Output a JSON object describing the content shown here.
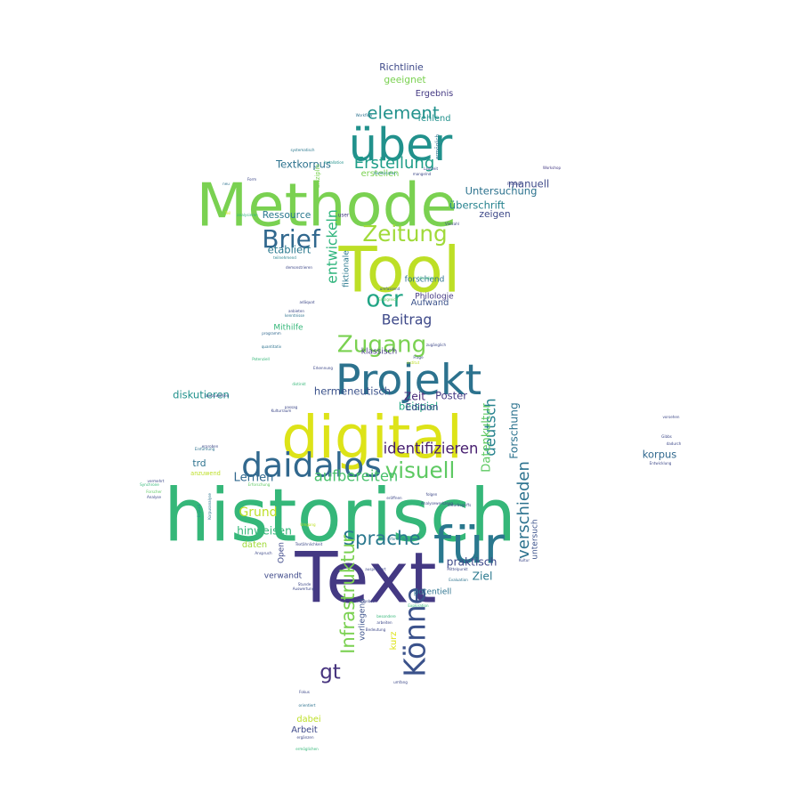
{
  "words": [
    {
      "text": "historisch",
      "size": 1.0,
      "color": "#35b779"
    },
    {
      "text": "Text",
      "size": 0.96,
      "color": "#443983"
    },
    {
      "text": "Tool",
      "size": 0.86,
      "color": "#bddf26"
    },
    {
      "text": "Methode",
      "size": 0.82,
      "color": "#7ad151"
    },
    {
      "text": "digital",
      "size": 0.8,
      "color": "#dde318"
    },
    {
      "text": "für",
      "size": 0.7,
      "color": "#2a788e"
    },
    {
      "text": "über",
      "size": 0.62,
      "color": "#21918c"
    },
    {
      "text": "Projekt",
      "size": 0.58,
      "color": "#2c728e"
    },
    {
      "text": "daidalos",
      "size": 0.46,
      "color": "#31688e"
    },
    {
      "text": "Könne",
      "size": 0.4,
      "color": "#3b528b"
    },
    {
      "text": "Brief",
      "size": 0.34,
      "color": "#31688e"
    },
    {
      "text": "ocr",
      "size": 0.32,
      "color": "#21a585"
    },
    {
      "text": "Zugang",
      "size": 0.32,
      "color": "#7ad151"
    },
    {
      "text": "Zeitung",
      "size": 0.3,
      "color": "#a0da39"
    },
    {
      "text": "visuell",
      "size": 0.3,
      "color": "#5ec962"
    },
    {
      "text": "Sprache",
      "size": 0.26,
      "color": "#2a788e"
    },
    {
      "text": "Infrastruktur",
      "size": 0.26,
      "color": "#7ad151"
    },
    {
      "text": "element",
      "size": 0.24,
      "color": "#21918c"
    },
    {
      "text": "verschieden",
      "size": 0.22,
      "color": "#2c728e"
    },
    {
      "text": "Erstellung",
      "size": 0.22,
      "color": "#1f9e89"
    },
    {
      "text": "aufbereiten",
      "size": 0.2,
      "color": "#4ac16d"
    },
    {
      "text": "identifizieren",
      "size": 0.2,
      "color": "#481f70"
    },
    {
      "text": "deutsch",
      "size": 0.2,
      "color": "#26828e"
    },
    {
      "text": "Beitrag",
      "size": 0.19,
      "color": "#3e4989"
    },
    {
      "text": "gt",
      "size": 0.28,
      "color": "#46337e"
    },
    {
      "text": "entwickeln",
      "size": 0.19,
      "color": "#2fb47c"
    },
    {
      "text": "Lernen",
      "size": 0.16,
      "color": "#31688e"
    },
    {
      "text": "Grund",
      "size": 0.17,
      "color": "#bddf26"
    },
    {
      "text": "Datenkultur",
      "size": 0.16,
      "color": "#5ec962"
    },
    {
      "text": "praktisch",
      "size": 0.15,
      "color": "#3e4989"
    },
    {
      "text": "hinweisen",
      "size": 0.15,
      "color": "#35b779"
    },
    {
      "text": "Forschung",
      "size": 0.15,
      "color": "#2c728e"
    },
    {
      "text": "Zeit",
      "size": 0.15,
      "color": "#482878"
    },
    {
      "text": "Poster",
      "size": 0.14,
      "color": "#443983"
    },
    {
      "text": "Ziel",
      "size": 0.15,
      "color": "#2a788e"
    },
    {
      "text": "beispiel",
      "size": 0.14,
      "color": "#22a884"
    },
    {
      "text": "Textkorpus",
      "size": 0.14,
      "color": "#2c728e"
    },
    {
      "text": "überschrift",
      "size": 0.14,
      "color": "#26828e"
    },
    {
      "text": "Untersuchung",
      "size": 0.14,
      "color": "#2c728e"
    },
    {
      "text": "manuell",
      "size": 0.14,
      "color": "#3e4989"
    },
    {
      "text": "zeigen",
      "size": 0.13,
      "color": "#3e4989"
    },
    {
      "text": "diskutieren",
      "size": 0.14,
      "color": "#21918c"
    },
    {
      "text": "korpus",
      "size": 0.14,
      "color": "#31688e"
    },
    {
      "text": "hermeneutisch",
      "size": 0.14,
      "color": "#3b528b"
    },
    {
      "text": "Edition",
      "size": 0.13,
      "color": "#3e4989"
    },
    {
      "text": "Ressource",
      "size": 0.13,
      "color": "#2a788e"
    },
    {
      "text": "etabliert",
      "size": 0.14,
      "color": "#2a788e"
    },
    {
      "text": "Richtlinie",
      "size": 0.13,
      "color": "#3e4989"
    },
    {
      "text": "geeignet",
      "size": 0.13,
      "color": "#7ad151"
    },
    {
      "text": "Ergebnis",
      "size": 0.12,
      "color": "#443983"
    },
    {
      "text": "fehlend",
      "size": 0.12,
      "color": "#21918c"
    },
    {
      "text": "Aufwand",
      "size": 0.12,
      "color": "#3b528b"
    },
    {
      "text": "Mithilfe",
      "size": 0.11,
      "color": "#35b779"
    },
    {
      "text": "erstellen",
      "size": 0.12,
      "color": "#7ad151"
    },
    {
      "text": "fiktionale",
      "size": 0.11,
      "color": "#2a788e"
    },
    {
      "text": "forschend",
      "size": 0.11,
      "color": "#2c728e"
    },
    {
      "text": "Philologie",
      "size": 0.11,
      "color": "#443983"
    },
    {
      "text": "klassisch",
      "size": 0.11,
      "color": "#443983"
    },
    {
      "text": "dabei",
      "size": 0.12,
      "color": "#bddf26"
    },
    {
      "text": "Arbeit",
      "size": 0.12,
      "color": "#3e4989"
    },
    {
      "text": "daten",
      "size": 0.12,
      "color": "#a0da39"
    },
    {
      "text": "Open",
      "size": 0.11,
      "color": "#3e4989"
    },
    {
      "text": "verwandt",
      "size": 0.11,
      "color": "#3e4989"
    },
    {
      "text": "potentiell",
      "size": 0.11,
      "color": "#2c728e"
    },
    {
      "text": "vorliegend",
      "size": 0.11,
      "color": "#3b528b"
    },
    {
      "text": "untersuch",
      "size": 0.11,
      "color": "#3b528b"
    },
    {
      "text": "trd",
      "size": 0.13,
      "color": "#2c728e"
    },
    {
      "text": "kurz",
      "size": 0.12,
      "color": "#dde318"
    },
    {
      "text": "anzuwend",
      "size": 0.08,
      "color": "#bddf26"
    },
    {
      "text": "disziplin",
      "size": 0.08,
      "color": "#7ad151"
    },
    {
      "text": "ermöglich",
      "size": 0.07,
      "color": "#2c728e"
    },
    {
      "text": "user",
      "size": 0.07,
      "color": "#443983"
    },
    {
      "text": "Workshop",
      "size": 0.05,
      "color": "#443983"
    },
    {
      "text": "Produkt",
      "size": 0.05,
      "color": "#3e4989"
    },
    {
      "text": "Kombination",
      "size": 0.05,
      "color": "#26828e"
    },
    {
      "text": "mangelnd",
      "size": 0.05,
      "color": "#3e4989"
    },
    {
      "text": "Laufzeit",
      "size": 0.05,
      "color": "#3e4989"
    },
    {
      "text": "Installation",
      "size": 0.05,
      "color": "#21918c"
    },
    {
      "text": "Workflow",
      "size": 0.05,
      "color": "#2c728e"
    },
    {
      "text": "systematisch",
      "size": 0.05,
      "color": "#2a788e"
    },
    {
      "text": "Form",
      "size": 0.05,
      "color": "#3e4989"
    },
    {
      "text": "neu",
      "size": 0.05,
      "color": "#2c728e"
    },
    {
      "text": "Teil",
      "size": 0.05,
      "color": "#dde318"
    },
    {
      "text": "analysieren",
      "size": 0.05,
      "color": "#2fb47c"
    },
    {
      "text": "Vielzahl",
      "size": 0.05,
      "color": "#3e4989"
    },
    {
      "text": "teilnehmend",
      "size": 0.05,
      "color": "#26828e"
    },
    {
      "text": "demonstrieren",
      "size": 0.05,
      "color": "#3e4989"
    },
    {
      "text": "adäquat",
      "size": 0.05,
      "color": "#3e4989"
    },
    {
      "text": "umfassend",
      "size": 0.05,
      "color": "#3b528b"
    },
    {
      "text": "Erfolgreich",
      "size": 0.05,
      "color": "#5ec962"
    },
    {
      "text": "Visueller",
      "size": 0.05,
      "color": "#35b779"
    },
    {
      "text": "anbieten",
      "size": 0.05,
      "color": "#3e4989"
    },
    {
      "text": "kenntnisse",
      "size": 0.05,
      "color": "#2c728e"
    },
    {
      "text": "programm",
      "size": 0.05,
      "color": "#31688e"
    },
    {
      "text": "quantitativ",
      "size": 0.05,
      "color": "#2c728e"
    },
    {
      "text": "Potenziell",
      "size": 0.05,
      "color": "#35b779"
    },
    {
      "text": "distinkt",
      "size": 0.05,
      "color": "#35b779"
    },
    {
      "text": "auszuwählen",
      "size": 0.05,
      "color": "#3e4989"
    },
    {
      "text": "zugänglich",
      "size": 0.05,
      "color": "#3e4989"
    },
    {
      "text": "Frage",
      "size": 0.05,
      "color": "#3e4989"
    },
    {
      "text": "institut",
      "size": 0.05,
      "color": "#bddf26"
    },
    {
      "text": "Erkennung",
      "size": 0.05,
      "color": "#3e4989"
    },
    {
      "text": "passag",
      "size": 0.05,
      "color": "#3e4989"
    },
    {
      "text": "Kulturraum",
      "size": 0.05,
      "color": "#3e4989"
    },
    {
      "text": "erproben",
      "size": 0.05,
      "color": "#3e4989"
    },
    {
      "text": "Einführung",
      "size": 0.05,
      "color": "#2c728e"
    },
    {
      "text": "vermehrt",
      "size": 0.05,
      "color": "#3e4989"
    },
    {
      "text": "Synchrone",
      "size": 0.05,
      "color": "#35b779"
    },
    {
      "text": "Forscher",
      "size": 0.05,
      "color": "#5ec962"
    },
    {
      "text": "Analyse",
      "size": 0.05,
      "color": "#3e4989"
    },
    {
      "text": "Explizit",
      "size": 0.05,
      "color": "#21918c"
    },
    {
      "text": "Korpusanalyse",
      "size": 0.05,
      "color": "#2c728e"
    },
    {
      "text": "Erforschung",
      "size": 0.05,
      "color": "#5ec962"
    },
    {
      "text": "Umgang",
      "size": 0.05,
      "color": "#bddf26"
    },
    {
      "text": "Textähnlichkeit",
      "size": 0.05,
      "color": "#3e4989"
    },
    {
      "text": "Stunde",
      "size": 0.05,
      "color": "#3e4989"
    },
    {
      "text": "Auswertung",
      "size": 0.05,
      "color": "#3e4989"
    },
    {
      "text": "Anspruch",
      "size": 0.05,
      "color": "#3e4989"
    },
    {
      "text": "erforderlich",
      "size": 0.05,
      "color": "#2c728e"
    },
    {
      "text": "Analysewerkzeug",
      "size": 0.05,
      "color": "#3e4989"
    },
    {
      "text": "naturbegriffs",
      "size": 0.05,
      "color": "#3e4989"
    },
    {
      "text": "folgen",
      "size": 0.05,
      "color": "#3e4989"
    },
    {
      "text": "eröffnen",
      "size": 0.05,
      "color": "#3e4989"
    },
    {
      "text": "Kultur",
      "size": 0.05,
      "color": "#3e4989"
    },
    {
      "text": "Mittelpunkt",
      "size": 0.05,
      "color": "#3e4989"
    },
    {
      "text": "ausprobiert",
      "size": 0.05,
      "color": "#3e4989"
    },
    {
      "text": "Evaluation",
      "size": 0.05,
      "color": "#2c728e"
    },
    {
      "text": "Exploration",
      "size": 0.05,
      "color": "#35b779"
    },
    {
      "text": "lernangebot",
      "size": 0.05,
      "color": "#3e4989"
    },
    {
      "text": "besondere",
      "size": 0.05,
      "color": "#35b779"
    },
    {
      "text": "arbeiten",
      "size": 0.05,
      "color": "#3e4989"
    },
    {
      "text": "Bedeutung",
      "size": 0.05,
      "color": "#3e4989"
    },
    {
      "text": "umfang",
      "size": 0.05,
      "color": "#3e4989"
    },
    {
      "text": "Fokus",
      "size": 0.05,
      "color": "#3e4989"
    },
    {
      "text": "orientiert",
      "size": 0.05,
      "color": "#2c728e"
    },
    {
      "text": "ergänzen",
      "size": 0.05,
      "color": "#3e4989"
    },
    {
      "text": "ermöglichen",
      "size": 0.05,
      "color": "#35b779"
    },
    {
      "text": "vorsehen",
      "size": 0.05,
      "color": "#3e4989"
    },
    {
      "text": "Gibbs",
      "size": 0.05,
      "color": "#3e4989"
    },
    {
      "text": "dadurch",
      "size": 0.05,
      "color": "#3e4989"
    },
    {
      "text": "Entwicklung",
      "size": 0.05,
      "color": "#3e4989"
    },
    {
      "text": "diskutiert",
      "size": 0.05,
      "color": "#5ec962"
    }
  ]
}
